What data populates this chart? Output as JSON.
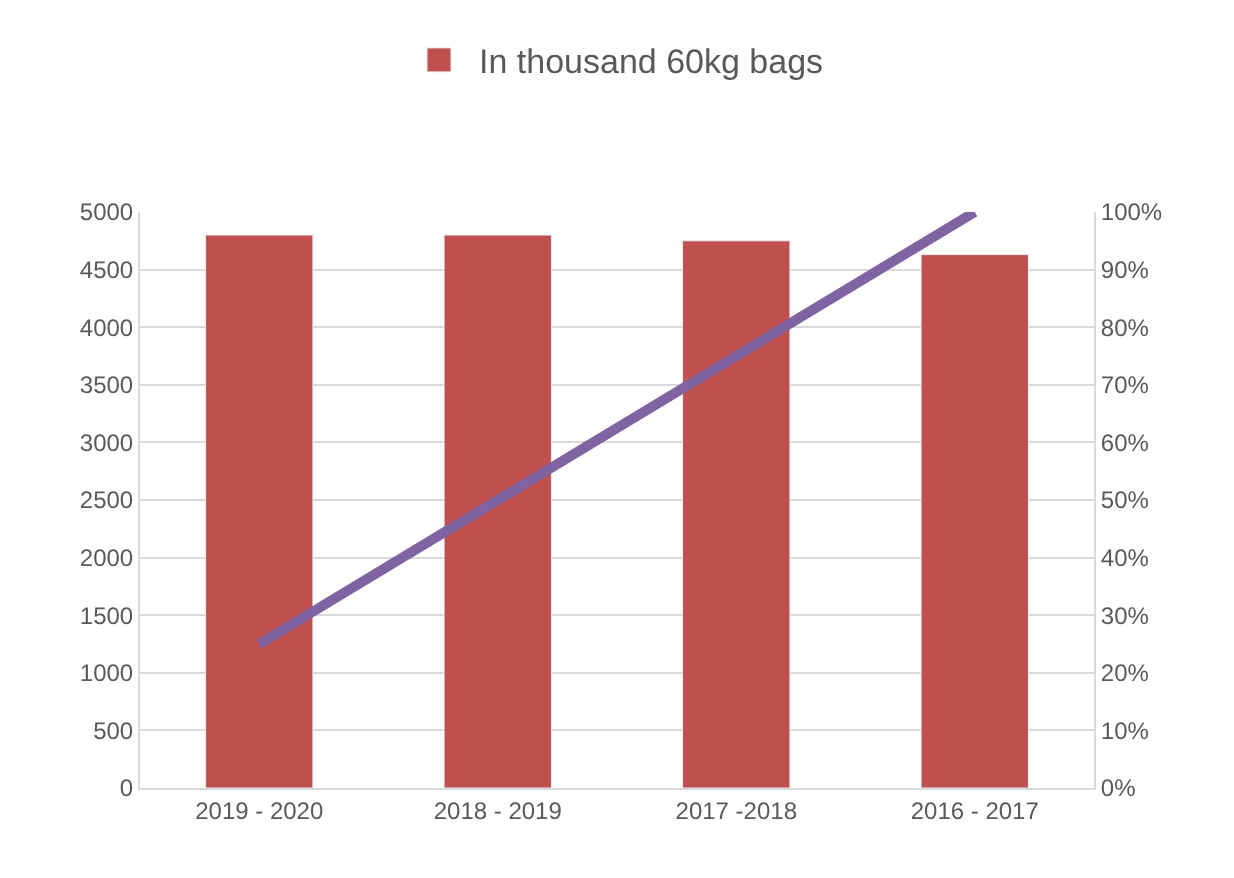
{
  "chart_data": {
    "type": "bar",
    "categories": [
      "2019 - 2020",
      "2018 - 2019",
      "2017 -2018",
      "2016 - 2017"
    ],
    "series": [
      {
        "name": "In thousand 60kg bags",
        "color": "#c0504d",
        "values": [
          4800,
          4800,
          4750,
          4630
        ]
      },
      {
        "type": "line",
        "axis": "y2",
        "color": "#8064a2",
        "values": [
          25,
          50,
          75,
          100
        ]
      }
    ],
    "ylim": [
      0,
      5000
    ],
    "yticks": [
      0,
      500,
      1000,
      1500,
      2000,
      2500,
      3000,
      3500,
      4000,
      4500,
      5000
    ],
    "y2lim": [
      0,
      100
    ],
    "y2ticks": [
      {
        "value": 0,
        "label": "0%"
      },
      {
        "value": 10,
        "label": "10%"
      },
      {
        "value": 20,
        "label": "20%"
      },
      {
        "value": 30,
        "label": "30%"
      },
      {
        "value": 40,
        "label": "40%"
      },
      {
        "value": 50,
        "label": "50%"
      },
      {
        "value": 60,
        "label": "60%"
      },
      {
        "value": 70,
        "label": "70%"
      },
      {
        "value": 80,
        "label": "80%"
      },
      {
        "value": 90,
        "label": "90%"
      },
      {
        "value": 100,
        "label": "100%"
      }
    ],
    "grid": "y",
    "legend": "top"
  }
}
